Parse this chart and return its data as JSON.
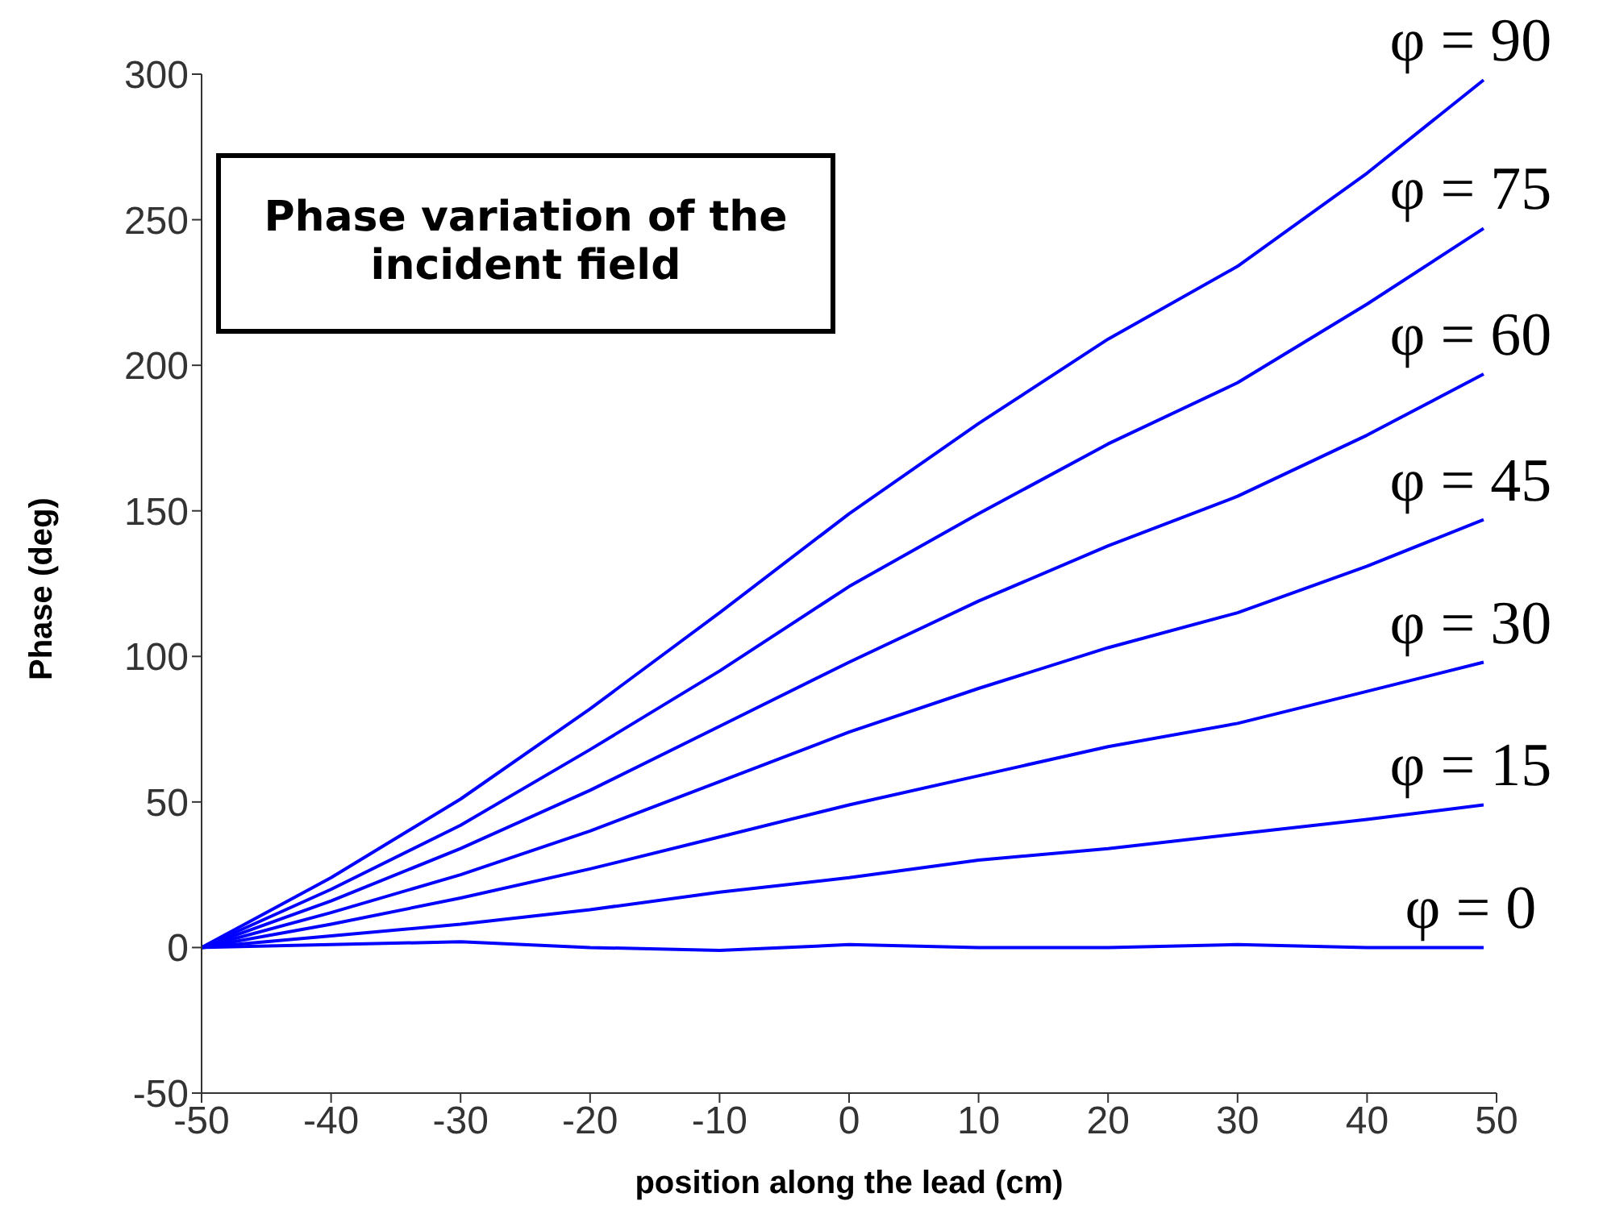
{
  "chart_data": {
    "type": "line",
    "title": "Phase variation of the incident field",
    "xlabel": "position along the lead (cm)",
    "ylabel": "Phase (deg)",
    "x": [
      -50,
      -40,
      -30,
      -20,
      -10,
      0,
      10,
      20,
      30,
      40,
      49
    ],
    "series": [
      {
        "name": "φ = 90",
        "color": "#0000ff",
        "values": [
          0,
          24,
          51,
          82,
          115,
          149,
          180,
          209,
          234,
          266,
          298
        ]
      },
      {
        "name": "φ = 75",
        "color": "#0000ff",
        "values": [
          0,
          20,
          42,
          68,
          95,
          124,
          149,
          173,
          194,
          221,
          247
        ]
      },
      {
        "name": "φ = 60",
        "color": "#0000ff",
        "values": [
          0,
          16,
          34,
          54,
          76,
          98,
          119,
          138,
          155,
          176,
          197
        ]
      },
      {
        "name": "φ = 45",
        "color": "#0000ff",
        "values": [
          0,
          12,
          25,
          40,
          57,
          74,
          89,
          103,
          115,
          131,
          147
        ]
      },
      {
        "name": "φ = 30",
        "color": "#0000ff",
        "values": [
          0,
          8,
          17,
          27,
          38,
          49,
          59,
          69,
          77,
          88,
          98
        ]
      },
      {
        "name": "φ = 15",
        "color": "#0000ff",
        "values": [
          0,
          4,
          8,
          13,
          19,
          24,
          30,
          34,
          39,
          44,
          49
        ]
      },
      {
        "name": "φ = 0",
        "color": "#0000ff",
        "values": [
          0,
          1,
          2,
          0,
          -1,
          1,
          0,
          0,
          1,
          0,
          0
        ]
      }
    ],
    "xlim": [
      -50,
      50
    ],
    "xticks": [
      -50,
      -40,
      -30,
      -20,
      -10,
      0,
      10,
      20,
      30,
      40,
      50
    ],
    "ylim": [
      -50,
      300
    ],
    "yticks": [
      -50,
      0,
      50,
      100,
      150,
      200,
      250,
      300
    ],
    "grid": false,
    "legend": false,
    "marker": "none",
    "line_style": "solid"
  }
}
